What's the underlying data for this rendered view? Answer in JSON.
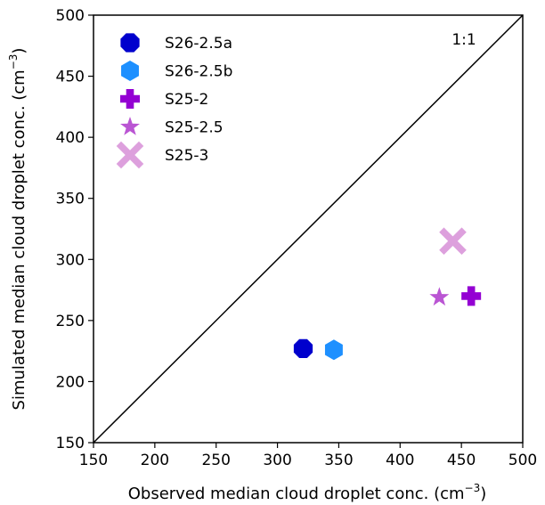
{
  "chart_data": {
    "type": "scatter",
    "title": "",
    "xlabel": "Observed median cloud droplet conc. (cm",
    "xlabel_sup": "−3",
    "xlabel_end": ")",
    "ylabel": "Simulated median cloud droplet conc. (cm",
    "ylabel_sup": "−3",
    "ylabel_end": ")",
    "xlim": [
      150,
      500
    ],
    "ylim": [
      150,
      500
    ],
    "xticks": [
      "150",
      "200",
      "250",
      "300",
      "350",
      "400",
      "450",
      "500"
    ],
    "yticks": [
      "150",
      "200",
      "250",
      "300",
      "350",
      "400",
      "450",
      "500"
    ],
    "grid": false,
    "legend_position": "top-left",
    "reference_line": {
      "label": "1:1",
      "from": [
        150,
        150
      ],
      "to": [
        500,
        500
      ]
    },
    "series": [
      {
        "name": "S26-2.5a",
        "marker": "octagon",
        "color": "#0000cd",
        "x": 321,
        "y": 227
      },
      {
        "name": "S26-2.5b",
        "marker": "hexagon",
        "color": "#1e90ff",
        "x": 346,
        "y": 226
      },
      {
        "name": "S25-2",
        "marker": "plus",
        "color": "#9400d3",
        "x": 458,
        "y": 270
      },
      {
        "name": "S25-2.5",
        "marker": "star",
        "color": "#ba55d3",
        "x": 432,
        "y": 269
      },
      {
        "name": "S25-3",
        "marker": "x",
        "color": "#dda0dd",
        "x": 443,
        "y": 315
      }
    ]
  }
}
